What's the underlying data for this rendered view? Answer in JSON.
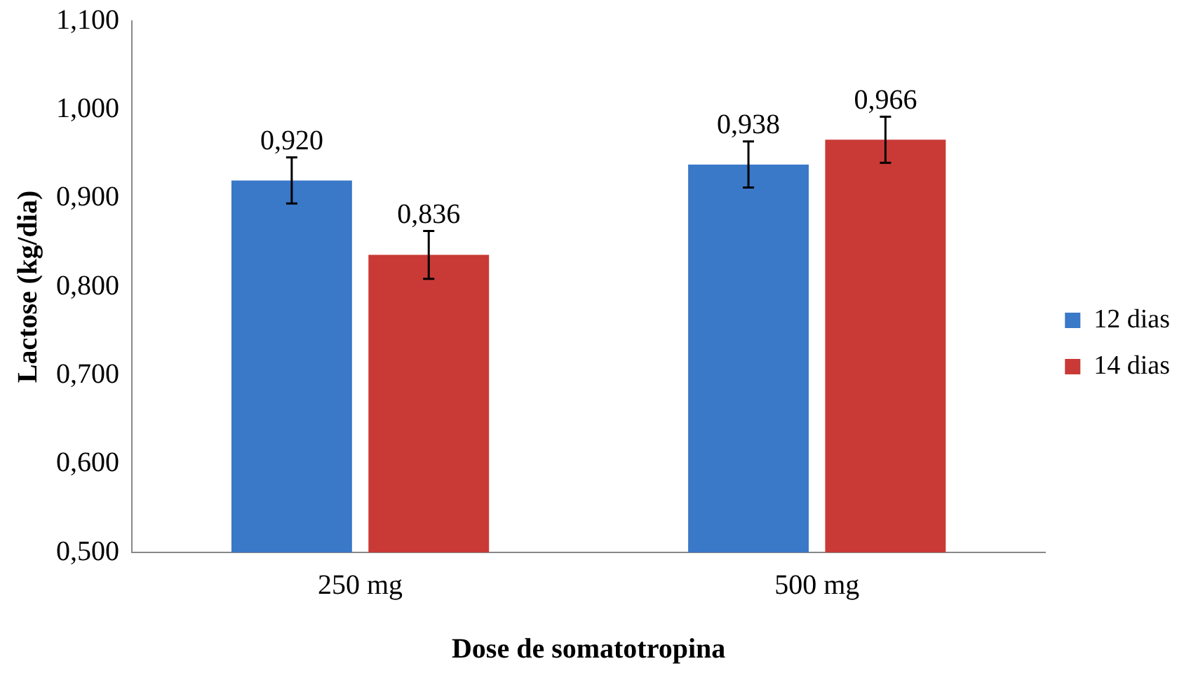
{
  "chart_data": {
    "type": "bar",
    "xlabel": "Dose de somatotropina",
    "ylabel": "Lactose (kg/dia)",
    "categories": [
      "250 mg",
      "500 mg"
    ],
    "series": [
      {
        "name": "12 dias",
        "color": "#3a78c8",
        "values": [
          0.92,
          0.938
        ],
        "errors": [
          0.026,
          0.026
        ],
        "value_labels": [
          "0,920",
          "0,938"
        ]
      },
      {
        "name": "14 dias",
        "color": "#c93a36",
        "values": [
          0.836,
          0.966
        ],
        "errors": [
          0.027,
          0.026
        ],
        "value_labels": [
          "0,836",
          "0,966"
        ]
      }
    ],
    "ylim": [
      0.5,
      1.1
    ],
    "yticks": [
      {
        "value": 0.5,
        "label": "0,500"
      },
      {
        "value": 0.6,
        "label": "0,600"
      },
      {
        "value": 0.7,
        "label": "0,700"
      },
      {
        "value": 0.8,
        "label": "0,800"
      },
      {
        "value": 0.9,
        "label": "0,900"
      },
      {
        "value": 1.0,
        "label": "1,000"
      },
      {
        "value": 1.1,
        "label": "1,100"
      }
    ],
    "grid": false,
    "legend": "right"
  }
}
